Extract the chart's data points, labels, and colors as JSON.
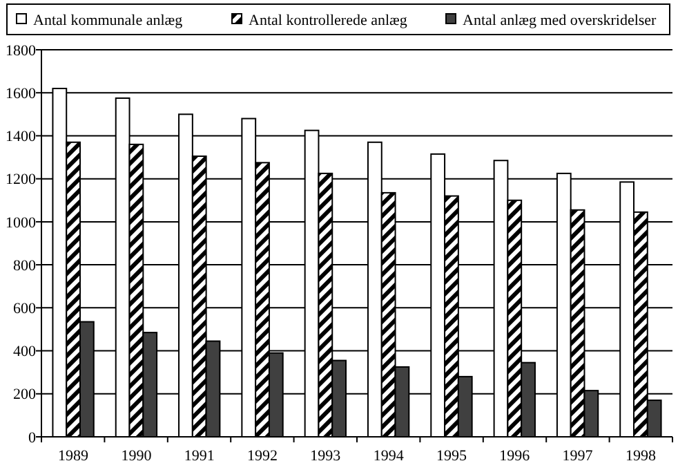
{
  "chart_data": {
    "type": "bar",
    "categories": [
      "1989",
      "1990",
      "1991",
      "1992",
      "1993",
      "1994",
      "1995",
      "1996",
      "1997",
      "1998"
    ],
    "series": [
      {
        "name": "Antal kommunale anlæg",
        "color": "#ffffff",
        "values": [
          1620,
          1575,
          1500,
          1480,
          1425,
          1370,
          1315,
          1285,
          1225,
          1185
        ]
      },
      {
        "name": "Antal kontrollerede anlæg",
        "color": "#000000",
        "values": [
          1370,
          1360,
          1305,
          1275,
          1225,
          1135,
          1120,
          1100,
          1055,
          1045
        ]
      },
      {
        "name": "Antal anlæg med overskridelser",
        "color": "#404040",
        "values": [
          535,
          485,
          445,
          390,
          355,
          325,
          280,
          345,
          215,
          170
        ]
      }
    ],
    "ylim": [
      0,
      1800
    ],
    "yticks": [
      0,
      200,
      400,
      600,
      800,
      1000,
      1200,
      1400,
      1600,
      1800
    ],
    "grid": "y",
    "legend": "top"
  }
}
